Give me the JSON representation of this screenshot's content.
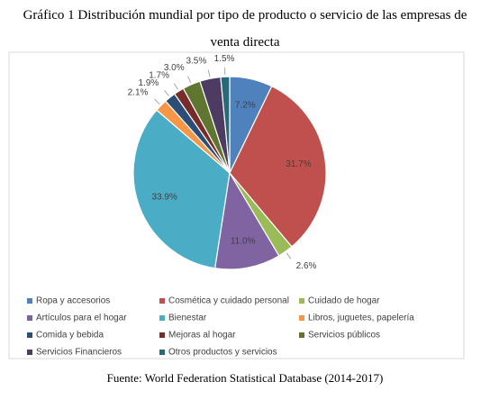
{
  "chart_data": {
    "type": "pie",
    "title": "Gráfico 1 Distribución mundial por tipo de producto o servicio de las empresas de venta directa",
    "source": "Fuente: World Federation Statistical Database (2014-2017)",
    "categories": [
      "Ropa y accesorios",
      "Cosmética y cuidado personal",
      "Cuidado de hogar",
      "Artículos para el hogar",
      "Bienestar",
      "Libros, juguetes, papelería",
      "Comida y bebida",
      "Mejoras al hogar",
      "Servicios públicos",
      "Servicios Financieros",
      "Otros productos y servicios"
    ],
    "values": [
      7.2,
      31.7,
      2.6,
      11.0,
      33.9,
      2.1,
      1.9,
      1.7,
      3.0,
      3.5,
      1.5
    ],
    "value_labels": [
      "7.2%",
      "31.7%",
      "2.6%",
      "11.0%",
      "33.9%",
      "2.1%",
      "1.9%",
      "1.7%",
      "3.0%",
      "3.5%",
      "1.5%"
    ],
    "colors": [
      "#4f81bd",
      "#c0504d",
      "#9bbb59",
      "#8064a2",
      "#4bacc6",
      "#f79646",
      "#2c4d75",
      "#772c2a",
      "#5f7530",
      "#4d3b62",
      "#276a7c"
    ],
    "legend": "bottom"
  }
}
